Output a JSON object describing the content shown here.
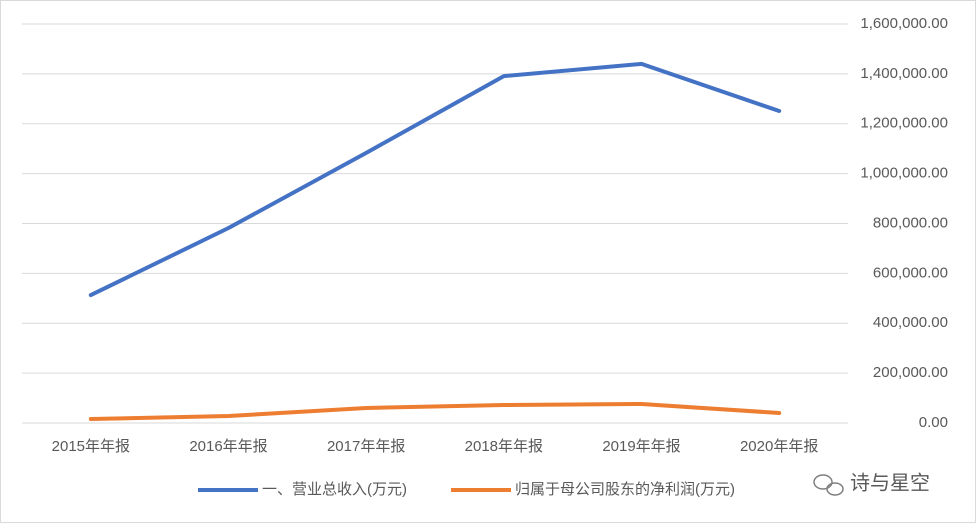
{
  "chart_data": {
    "type": "line",
    "categories": [
      "2015年年报",
      "2016年年报",
      "2017年年报",
      "2018年年报",
      "2019年年报",
      "2020年年报"
    ],
    "series": [
      {
        "name": "一、营业总收入(万元)",
        "color": "#4472c4",
        "values": [
          513000,
          782000,
          1083000,
          1391000,
          1440000,
          1251000
        ]
      },
      {
        "name": "归属于母公司股东的净利润(万元)",
        "color": "#ed7d31",
        "values": [
          16000,
          28000,
          60000,
          72000,
          76000,
          40000
        ]
      }
    ],
    "ylim": [
      0,
      1600000
    ],
    "yticks": [
      {
        "value": 0,
        "label": "0.00"
      },
      {
        "value": 200000,
        "label": "200,000.00"
      },
      {
        "value": 400000,
        "label": "400,000.00"
      },
      {
        "value": 600000,
        "label": "600,000.00"
      },
      {
        "value": 800000,
        "label": "800,000.00"
      },
      {
        "value": 1000000,
        "label": "1,000,000.00"
      },
      {
        "value": 1200000,
        "label": "1,200,000.00"
      },
      {
        "value": 1400000,
        "label": "1,400,000.00"
      },
      {
        "value": 1600000,
        "label": "1,600,000.00"
      }
    ],
    "grid": true,
    "legend": "bottom",
    "y_axis_side": "right"
  },
  "watermark": "诗与星空"
}
